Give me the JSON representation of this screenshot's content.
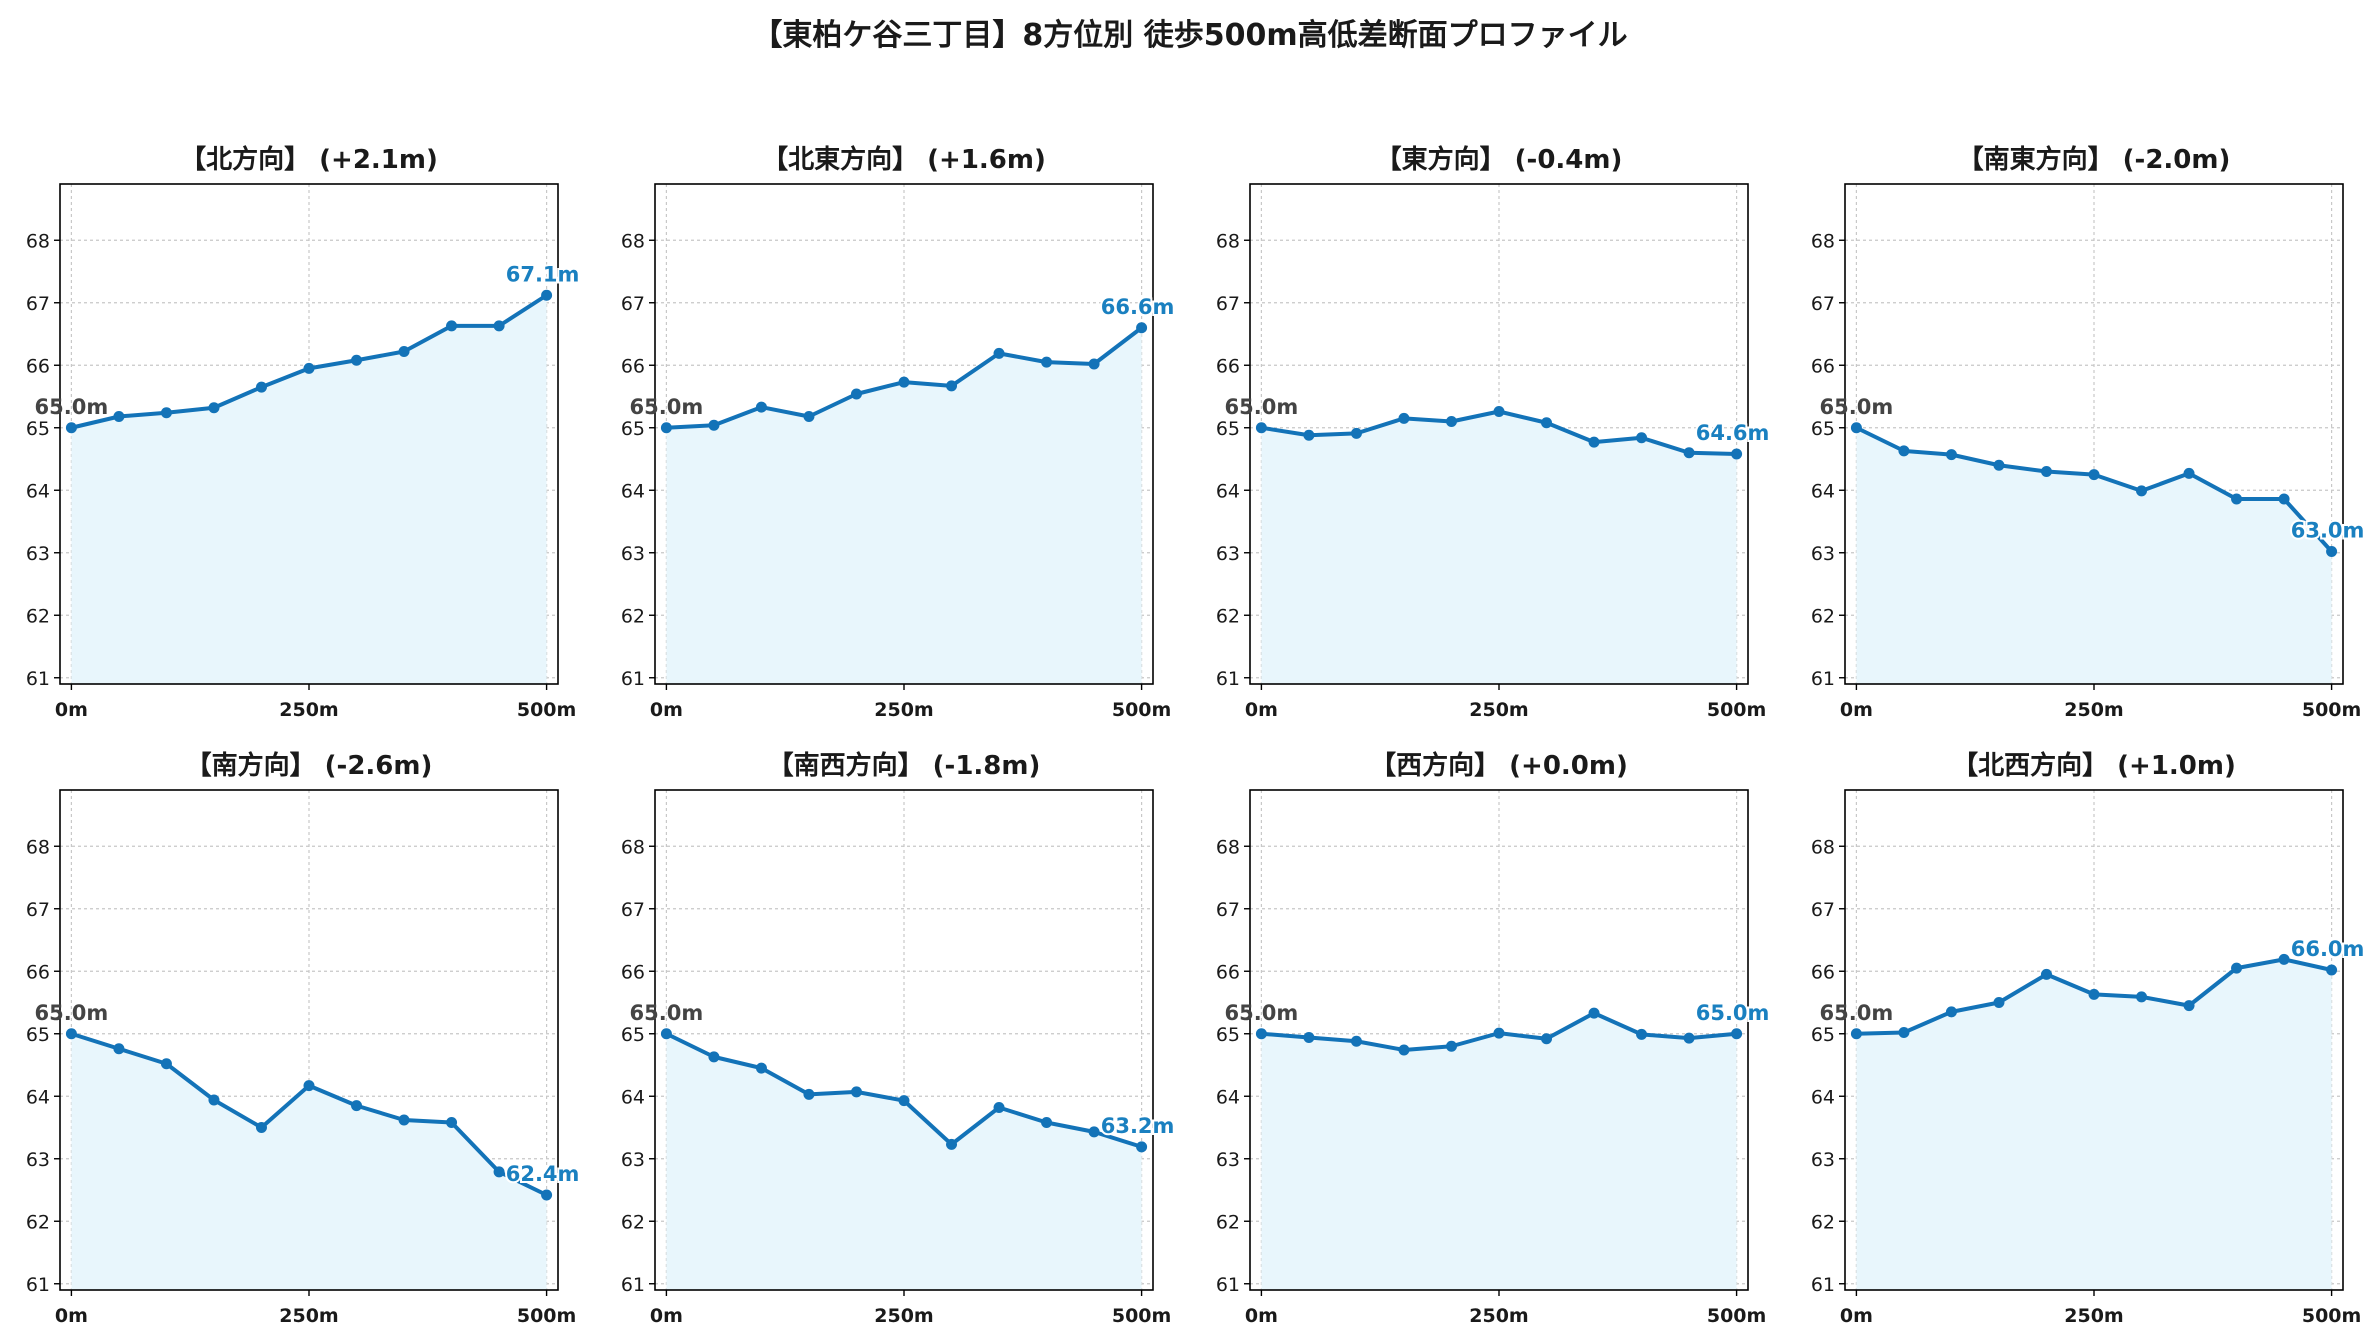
{
  "title": "【東柏ケ谷三丁目】8方位別 徒歩500m高低差断面プロファイル",
  "colors": {
    "line": "#1373b8",
    "fill": "#e8f6fc",
    "end_label": "#1a80c0",
    "start_label": "#444444"
  },
  "chart_data": [
    {
      "type": "area",
      "title": "【北方向】 (+2.1m)",
      "x": [
        0,
        50,
        100,
        150,
        200,
        250,
        300,
        350,
        400,
        450,
        500
      ],
      "values": [
        65.0,
        65.18,
        65.24,
        65.32,
        65.65,
        65.95,
        66.08,
        66.22,
        66.63,
        66.63,
        67.12
      ],
      "xticks": [
        "0m",
        "250m",
        "500m"
      ],
      "yticks": [
        "61",
        "62",
        "63",
        "64",
        "65",
        "66",
        "67",
        "68"
      ],
      "ylim": [
        60.9,
        68.9
      ],
      "start_label": "65.0m",
      "end_label": "67.1m",
      "grid": true
    },
    {
      "type": "area",
      "title": "【北東方向】 (+1.6m)",
      "x": [
        0,
        50,
        100,
        150,
        200,
        250,
        300,
        350,
        400,
        450,
        500
      ],
      "values": [
        65.0,
        65.04,
        65.33,
        65.18,
        65.54,
        65.73,
        65.67,
        66.19,
        66.05,
        66.02,
        66.6
      ],
      "xticks": [
        "0m",
        "250m",
        "500m"
      ],
      "yticks": [
        "61",
        "62",
        "63",
        "64",
        "65",
        "66",
        "67",
        "68"
      ],
      "ylim": [
        60.9,
        68.9
      ],
      "start_label": "65.0m",
      "end_label": "66.6m",
      "grid": true
    },
    {
      "type": "area",
      "title": "【東方向】 (-0.4m)",
      "x": [
        0,
        50,
        100,
        150,
        200,
        250,
        300,
        350,
        400,
        450,
        500
      ],
      "values": [
        65.0,
        64.88,
        64.91,
        65.15,
        65.1,
        65.26,
        65.08,
        64.77,
        64.84,
        64.6,
        64.58
      ],
      "xticks": [
        "0m",
        "250m",
        "500m"
      ],
      "yticks": [
        "61",
        "62",
        "63",
        "64",
        "65",
        "66",
        "67",
        "68"
      ],
      "ylim": [
        60.9,
        68.9
      ],
      "start_label": "65.0m",
      "end_label": "64.6m",
      "grid": true
    },
    {
      "type": "area",
      "title": "【南東方向】 (-2.0m)",
      "x": [
        0,
        50,
        100,
        150,
        200,
        250,
        300,
        350,
        400,
        450,
        500
      ],
      "values": [
        65.0,
        64.63,
        64.57,
        64.4,
        64.3,
        64.25,
        63.99,
        64.27,
        63.86,
        63.86,
        63.02
      ],
      "xticks": [
        "0m",
        "250m",
        "500m"
      ],
      "yticks": [
        "61",
        "62",
        "63",
        "64",
        "65",
        "66",
        "67",
        "68"
      ],
      "ylim": [
        60.9,
        68.9
      ],
      "start_label": "65.0m",
      "end_label": "63.0m",
      "grid": true
    },
    {
      "type": "area",
      "title": "【南方向】 (-2.6m)",
      "x": [
        0,
        50,
        100,
        150,
        200,
        250,
        300,
        350,
        400,
        450,
        500
      ],
      "values": [
        65.0,
        64.76,
        64.52,
        63.94,
        63.5,
        64.17,
        63.85,
        63.62,
        63.58,
        62.79,
        62.42
      ],
      "xticks": [
        "0m",
        "250m",
        "500m"
      ],
      "yticks": [
        "61",
        "62",
        "63",
        "64",
        "65",
        "66",
        "67",
        "68"
      ],
      "ylim": [
        60.9,
        68.9
      ],
      "start_label": "65.0m",
      "end_label": "62.4m",
      "grid": true
    },
    {
      "type": "area",
      "title": "【南西方向】 (-1.8m)",
      "x": [
        0,
        50,
        100,
        150,
        200,
        250,
        300,
        350,
        400,
        450,
        500
      ],
      "values": [
        65.0,
        64.63,
        64.45,
        64.03,
        64.07,
        63.93,
        63.23,
        63.82,
        63.58,
        63.43,
        63.19
      ],
      "xticks": [
        "0m",
        "250m",
        "500m"
      ],
      "yticks": [
        "61",
        "62",
        "63",
        "64",
        "65",
        "66",
        "67",
        "68"
      ],
      "ylim": [
        60.9,
        68.9
      ],
      "start_label": "65.0m",
      "end_label": "63.2m",
      "grid": true
    },
    {
      "type": "area",
      "title": "【西方向】 (+0.0m)",
      "x": [
        0,
        50,
        100,
        150,
        200,
        250,
        300,
        350,
        400,
        450,
        500
      ],
      "values": [
        65.0,
        64.94,
        64.88,
        64.74,
        64.8,
        65.01,
        64.92,
        65.33,
        64.99,
        64.93,
        65.0
      ],
      "xticks": [
        "0m",
        "250m",
        "500m"
      ],
      "yticks": [
        "61",
        "62",
        "63",
        "64",
        "65",
        "66",
        "67",
        "68"
      ],
      "ylim": [
        60.9,
        68.9
      ],
      "start_label": "65.0m",
      "end_label": "65.0m",
      "grid": true
    },
    {
      "type": "area",
      "title": "【北西方向】 (+1.0m)",
      "x": [
        0,
        50,
        100,
        150,
        200,
        250,
        300,
        350,
        400,
        450,
        500
      ],
      "values": [
        65.0,
        65.02,
        65.35,
        65.5,
        65.95,
        65.63,
        65.59,
        65.45,
        66.05,
        66.19,
        66.02
      ],
      "xticks": [
        "0m",
        "250m",
        "500m"
      ],
      "yticks": [
        "61",
        "62",
        "63",
        "64",
        "65",
        "66",
        "67",
        "68"
      ],
      "ylim": [
        60.9,
        68.9
      ],
      "start_label": "65.0m",
      "end_label": "66.0m",
      "grid": true
    }
  ]
}
